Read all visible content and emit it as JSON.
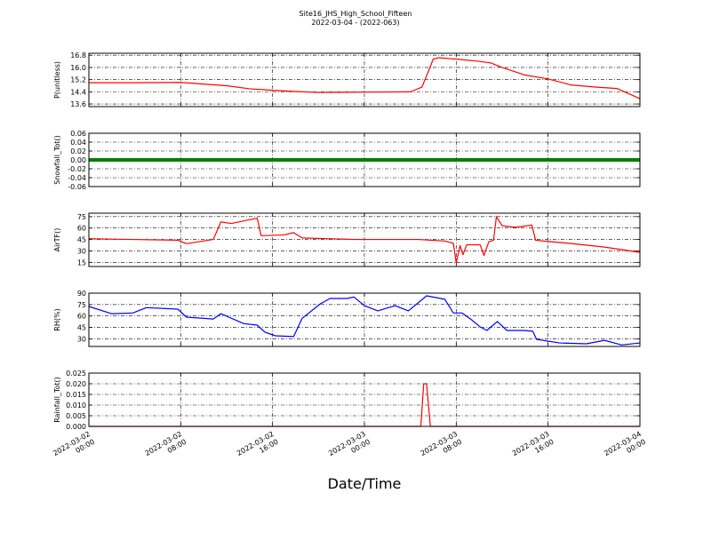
{
  "chart_data": [
    {
      "type": "line",
      "title": "Site16_JHS_High_School_Fifteen",
      "subtitle": "2022-03-04 - (2022-063)",
      "ylabel": "P(unitless)",
      "color": "#ff0000",
      "grid": true,
      "x": [
        "2022-03-02 00:00",
        "2022-03-02 04:00",
        "2022-03-02 08:00",
        "2022-03-02 12:00",
        "2022-03-02 14:00",
        "2022-03-02 16:00",
        "2022-03-02 18:00",
        "2022-03-02 20:00",
        "2022-03-03 00:00",
        "2022-03-03 04:00",
        "2022-03-03 05:00",
        "2022-03-03 05:30",
        "2022-03-03 06:00",
        "2022-03-03 06:30",
        "2022-03-03 08:00",
        "2022-03-03 10:00",
        "2022-03-03 11:00",
        "2022-03-03 12:00",
        "2022-03-03 14:00",
        "2022-03-03 16:00",
        "2022-03-03 18:00",
        "2022-03-03 20:00",
        "2022-03-03 22:00",
        "2022-03-04 00:00"
      ],
      "values": [
        15.0,
        15.0,
        15.02,
        14.8,
        14.6,
        14.5,
        14.42,
        14.36,
        14.38,
        14.4,
        14.7,
        15.6,
        16.55,
        16.64,
        16.55,
        16.4,
        16.3,
        16.0,
        15.5,
        15.25,
        14.85,
        14.72,
        14.62,
        13.95
      ],
      "xlim": [
        "2022-03-02 00:00",
        "2022-03-04 00:00"
      ],
      "xticks": [
        "2022-03-02 00:00",
        "2022-03-02 08:00",
        "2022-03-02 16:00",
        "2022-03-03 00:00",
        "2022-03-03 08:00",
        "2022-03-03 16:00",
        "2022-03-04 00:00"
      ],
      "ylim": [
        13.43,
        16.93
      ],
      "yticks": [
        13.6,
        14.4,
        15.2,
        {
          "value": 16,
          "label": "16.0"
        },
        16.8
      ]
    },
    {
      "type": "line",
      "ylabel": "Snowfall_Tot()",
      "color": "#008000",
      "grid": true,
      "x": [
        "2022-03-02 00:00",
        "2022-03-02 04:00",
        "2022-03-02 08:00",
        "2022-03-02 12:00",
        "2022-03-02 16:00",
        "2022-03-02 20:00",
        "2022-03-03 00:00",
        "2022-03-03 04:00",
        "2022-03-03 08:00",
        "2022-03-03 12:00",
        "2022-03-03 16:00",
        "2022-03-03 20:00",
        "2022-03-04 00:00"
      ],
      "values": [
        0,
        0,
        0,
        0,
        0,
        0,
        0,
        0,
        0,
        0,
        0,
        0,
        0
      ],
      "xlim": [
        "2022-03-02 00:00",
        "2022-03-04 00:00"
      ],
      "xticks": [
        "2022-03-02 00:00",
        "2022-03-02 08:00",
        "2022-03-02 16:00",
        "2022-03-03 00:00",
        "2022-03-03 08:00",
        "2022-03-03 16:00",
        "2022-03-04 00:00"
      ],
      "ylim": [
        -0.06,
        0.06
      ],
      "yticks": [
        -0.06,
        -0.04,
        -0.02,
        {
          "value": 0,
          "label": "0.00"
        },
        0.02,
        0.04,
        0.06
      ]
    },
    {
      "type": "line",
      "ylabel": "AirTF()",
      "color": "#ff0000",
      "grid": true,
      "x": [
        "2022-03-02 00:00",
        "2022-03-02 07:45",
        "2022-03-02 08:30",
        "2022-03-02 10:50",
        "2022-03-02 11:30",
        "2022-03-02 12:25",
        "2022-03-02 14:40",
        "2022-03-02 15:00",
        "2022-03-02 17:00",
        "2022-03-02 17:50",
        "2022-03-02 18:35",
        "2022-03-02 23:15",
        "2022-03-03 04:40",
        "2022-03-03 07:00",
        "2022-03-03 07:45",
        "2022-03-03 08:00",
        "2022-03-03 08:20",
        "2022-03-03 08:35",
        "2022-03-03 08:55",
        "2022-03-03 10:05",
        "2022-03-03 10:25",
        "2022-03-03 10:50",
        "2022-03-03 11:15",
        "2022-03-03 11:30",
        "2022-03-03 12:00",
        "2022-03-03 13:10",
        "2022-03-03 14:35",
        "2022-03-03 14:55",
        "2022-03-03 16:15",
        "2022-03-03 17:50",
        "2022-03-03 20:55",
        "2022-03-04 00:00"
      ],
      "values": [
        46,
        44,
        39.5,
        45,
        68,
        66,
        73,
        50,
        51,
        54,
        47,
        45,
        45,
        43,
        40,
        14,
        37,
        25,
        38,
        38,
        24,
        42,
        44,
        75,
        63,
        61,
        64,
        44,
        42,
        40,
        35,
        28
      ],
      "xlim": [
        "2022-03-02 00:00",
        "2022-03-04 00:00"
      ],
      "xticks": [
        "2022-03-02 00:00",
        "2022-03-02 08:00",
        "2022-03-02 16:00",
        "2022-03-03 00:00",
        "2022-03-03 08:00",
        "2022-03-03 16:00",
        "2022-03-04 00:00"
      ],
      "ylim": [
        9.5,
        79.5
      ],
      "yticks": [
        15,
        30,
        45,
        60,
        75
      ]
    },
    {
      "type": "line",
      "ylabel": "RH(%)",
      "color": "#0000ff",
      "grid": true,
      "x": [
        "2022-03-02 00:00",
        "2022-03-02 02:00",
        "2022-03-02 03:50",
        "2022-03-02 05:00",
        "2022-03-02 07:45",
        "2022-03-02 08:30",
        "2022-03-02 10:50",
        "2022-03-02 11:30",
        "2022-03-02 13:30",
        "2022-03-02 14:40",
        "2022-03-02 15:20",
        "2022-03-02 16:15",
        "2022-03-02 17:50",
        "2022-03-02 18:35",
        "2022-03-02 20:10",
        "2022-03-02 21:00",
        "2022-03-02 22:30",
        "2022-03-02 23:05",
        "2022-03-03 00:00",
        "2022-03-03 01:10",
        "2022-03-03 02:40",
        "2022-03-03 03:50",
        "2022-03-03 05:25",
        "2022-03-03 07:00",
        "2022-03-03 07:45",
        "2022-03-03 08:30",
        "2022-03-03 09:20",
        "2022-03-03 10:05",
        "2022-03-03 10:40",
        "2022-03-03 11:35",
        "2022-03-03 12:25",
        "2022-03-03 13:55",
        "2022-03-03 14:40",
        "2022-03-03 15:00",
        "2022-03-03 17:00",
        "2022-03-03 19:20",
        "2022-03-03 20:55",
        "2022-03-03 22:25",
        "2022-03-04 00:00"
      ],
      "values": [
        72.5,
        63,
        64,
        71,
        69,
        58.5,
        56,
        63,
        50,
        48,
        38.7,
        34,
        33,
        57,
        76,
        83,
        83,
        85,
        73.6,
        66.7,
        73.6,
        66.7,
        86.5,
        82,
        64,
        64,
        55,
        45.7,
        41,
        52.7,
        41,
        41,
        40,
        29.3,
        24.6,
        23.5,
        28,
        22,
        24.6
      ],
      "xlim": [
        "2022-03-02 00:00",
        "2022-03-04 00:00"
      ],
      "xticks": [
        "2022-03-02 00:00",
        "2022-03-02 08:00",
        "2022-03-02 16:00",
        "2022-03-03 00:00",
        "2022-03-03 08:00",
        "2022-03-03 16:00",
        "2022-03-04 00:00"
      ],
      "ylim": [
        20,
        90
      ],
      "yticks": [
        30,
        45,
        60,
        75,
        90
      ]
    },
    {
      "type": "line",
      "ylabel": "Rainfall_Tot()",
      "xlabel": "Date/Time",
      "color": "#ff0000",
      "grid": true,
      "x": [
        "2022-03-02 00:00",
        "2022-03-03 04:55",
        "2022-03-03 05:10",
        "2022-03-03 05:25",
        "2022-03-03 05:45",
        "2022-03-04 00:00"
      ],
      "values": [
        0,
        0,
        0.02,
        0.02,
        0,
        0
      ],
      "xlim": [
        "2022-03-02 00:00",
        "2022-03-04 00:00"
      ],
      "xticks": [
        {
          "value": "2022-03-02 00:00",
          "label": "2022-03-02\n00:00"
        },
        {
          "value": "2022-03-02 08:00",
          "label": "2022-03-02\n08:00"
        },
        {
          "value": "2022-03-02 16:00",
          "label": "2022-03-02\n16:00"
        },
        {
          "value": "2022-03-03 00:00",
          "label": "2022-03-03\n00:00"
        },
        {
          "value": "2022-03-03 08:00",
          "label": "2022-03-03\n08:00"
        },
        {
          "value": "2022-03-03 16:00",
          "label": "2022-03-03\n16:00"
        },
        {
          "value": "2022-03-04 00:00",
          "label": "2022-03-04\n00:00"
        }
      ],
      "ylim": [
        0,
        0.025
      ],
      "yticks": [
        {
          "value": 0,
          "label": "0.000"
        },
        0.005,
        {
          "value": 0.01,
          "label": "0.010"
        },
        0.015,
        {
          "value": 0.02,
          "label": "0.020"
        },
        0.025
      ]
    }
  ]
}
